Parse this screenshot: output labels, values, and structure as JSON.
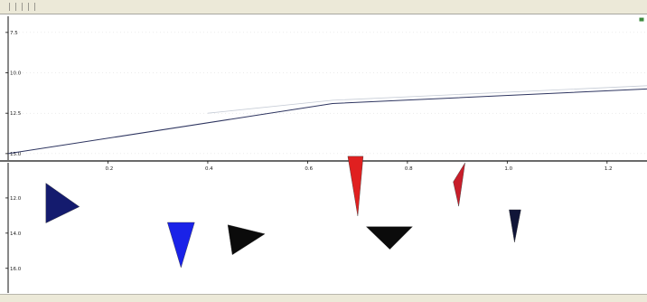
{
  "menu": {
    "items": [
      "",
      "",
      "",
      "",
      "",
      ""
    ]
  },
  "chart_data": [
    {
      "type": "line",
      "title": "",
      "xlabel": "",
      "ylabel": "",
      "x_ticks": [
        0.2,
        0.4,
        0.6,
        0.8,
        1.0,
        1.2
      ],
      "xlim": [
        0,
        1.28
      ],
      "y_ticks": [
        7.5,
        10.0,
        12.5,
        15.0
      ],
      "ylim": [
        6.5,
        15.4
      ],
      "y_inverted": true,
      "series": [
        {
          "color": "#2e3560",
          "x": [
            0,
            0.65,
            1.28
          ],
          "y": [
            15.0,
            11.9,
            11.0
          ]
        },
        {
          "color": "#c6ccd6",
          "x": [
            0.4,
            0.65,
            1.28
          ],
          "y": [
            12.5,
            11.7,
            10.8
          ]
        }
      ],
      "end_marker": {
        "x": 1.27,
        "y": 6.7,
        "color": "#3f8a3f"
      }
    },
    {
      "type": "scatter",
      "title": "",
      "xlabel": "",
      "ylabel": "",
      "x_ticks": [
        0.2,
        0.4,
        0.6,
        0.8,
        1.0,
        1.2
      ],
      "xlim": [
        0,
        1.28
      ],
      "y_ticks": [
        12.0,
        14.0,
        16.0
      ],
      "ylim": [
        10.0,
        17.4
      ],
      "markers": [
        {
          "x": 0.11,
          "y": 12.5,
          "label": "",
          "color": "#141b6e",
          "shape": "tri-right-large",
          "label_inside": true
        },
        {
          "x": 0.35,
          "y": 13.7,
          "label": "",
          "color": "#1a22e8",
          "shape": "tri-down",
          "label_inside": true
        },
        {
          "x": 0.48,
          "y": 14.2,
          "label": "",
          "color": "#0b0b0b",
          "shape": "tri-right",
          "label_inside": true
        },
        {
          "x": 0.695,
          "y": 12.1,
          "label": "",
          "color": "#e02020",
          "shape": "needle",
          "label_inside": false
        },
        {
          "x": 0.79,
          "y": 14.3,
          "label": "",
          "color": "#0b0b0b",
          "shape": "tri-down-wide",
          "label_inside": true
        },
        {
          "x": 0.91,
          "y": 11.7,
          "label": "",
          "color": "#c81e2a",
          "shape": "needle-small",
          "label_inside": false
        },
        {
          "x": 1.02,
          "y": 13.7,
          "label": "",
          "color": "#101538",
          "shape": "tri-down-narrow",
          "label_inside": false
        }
      ]
    }
  ],
  "status": {
    "text": ""
  },
  "colors": {
    "axis": "#111111",
    "grid": "#d8d8d8",
    "background": "#ffffff",
    "chrome": "#ece9d8"
  }
}
